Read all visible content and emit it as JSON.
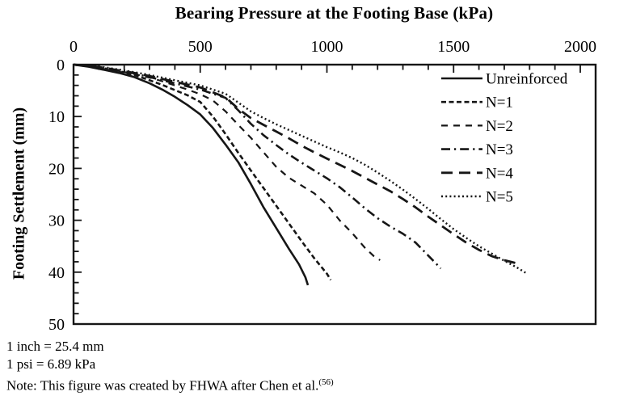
{
  "page": {
    "background": "#ffffff",
    "text_color": "#000000"
  },
  "chart_data": {
    "type": "line",
    "title": "Bearing Pressure at the Footing Base (kPa)",
    "xlabel": "Bearing Pressure at the Footing Base (kPa)",
    "ylabel": "Footing Settlement (mm)",
    "line_color": "#161616",
    "grid": false,
    "x_axis": {
      "min": 0,
      "max": 2000,
      "position": "top",
      "major_ticks": [
        0,
        500,
        1000,
        1500,
        2000
      ],
      "minor_step": 100
    },
    "y_axis": {
      "min": 0,
      "max": 50,
      "position": "left",
      "inverted": true,
      "major_ticks": [
        0,
        10,
        20,
        30,
        40,
        50
      ],
      "minor_step": 2
    },
    "legend": {
      "position": "top-right-inside"
    },
    "series": [
      {
        "name": "Unreinforced",
        "dash": "",
        "width": 2.6,
        "points": [
          [
            0,
            0
          ],
          [
            60,
            0.4
          ],
          [
            120,
            1.0
          ],
          [
            180,
            1.6
          ],
          [
            240,
            2.4
          ],
          [
            300,
            3.6
          ],
          [
            350,
            4.8
          ],
          [
            400,
            6.2
          ],
          [
            450,
            7.8
          ],
          [
            500,
            9.6
          ],
          [
            550,
            12.2
          ],
          [
            600,
            15.4
          ],
          [
            650,
            18.8
          ],
          [
            700,
            23.0
          ],
          [
            750,
            27.5
          ],
          [
            800,
            31.5
          ],
          [
            850,
            35.5
          ],
          [
            890,
            38.5
          ],
          [
            915,
            41.0
          ],
          [
            925,
            42.5
          ]
        ]
      },
      {
        "name": "N=1",
        "dash": "6 3.5",
        "width": 2.6,
        "points": [
          [
            0,
            0
          ],
          [
            60,
            0.35
          ],
          [
            120,
            0.85
          ],
          [
            180,
            1.4
          ],
          [
            240,
            2.0
          ],
          [
            300,
            3.0
          ],
          [
            350,
            3.9
          ],
          [
            400,
            4.9
          ],
          [
            450,
            5.9
          ],
          [
            500,
            7.2
          ],
          [
            550,
            10.0
          ],
          [
            600,
            13.4
          ],
          [
            650,
            17.0
          ],
          [
            700,
            20.4
          ],
          [
            750,
            23.8
          ],
          [
            800,
            27.2
          ],
          [
            850,
            30.6
          ],
          [
            900,
            34.0
          ],
          [
            950,
            37.3
          ],
          [
            1000,
            40.3
          ],
          [
            1015,
            41.5
          ]
        ]
      },
      {
        "name": "N=2",
        "dash": "8 7",
        "width": 2.2,
        "points": [
          [
            0,
            0
          ],
          [
            60,
            0.3
          ],
          [
            120,
            0.75
          ],
          [
            180,
            1.25
          ],
          [
            240,
            1.8
          ],
          [
            300,
            2.5
          ],
          [
            350,
            3.2
          ],
          [
            400,
            4.0
          ],
          [
            450,
            4.8
          ],
          [
            500,
            5.7
          ],
          [
            550,
            6.9
          ],
          [
            600,
            9.0
          ],
          [
            650,
            11.6
          ],
          [
            700,
            14.1
          ],
          [
            750,
            16.9
          ],
          [
            800,
            19.7
          ],
          [
            850,
            21.8
          ],
          [
            900,
            23.3
          ],
          [
            950,
            24.8
          ],
          [
            1000,
            27.0
          ],
          [
            1050,
            30.0
          ],
          [
            1100,
            32.5
          ],
          [
            1150,
            35.3
          ],
          [
            1185,
            36.9
          ],
          [
            1210,
            37.7
          ]
        ]
      },
      {
        "name": "N=3",
        "dash": "11 5 2.2 5",
        "width": 2.6,
        "points": [
          [
            0,
            0
          ],
          [
            60,
            0.25
          ],
          [
            120,
            0.7
          ],
          [
            180,
            1.2
          ],
          [
            240,
            1.7
          ],
          [
            300,
            2.4
          ],
          [
            400,
            3.6
          ],
          [
            500,
            4.8
          ],
          [
            600,
            6.4
          ],
          [
            650,
            8.8
          ],
          [
            700,
            11.4
          ],
          [
            750,
            13.6
          ],
          [
            800,
            15.5
          ],
          [
            850,
            17.3
          ],
          [
            900,
            18.9
          ],
          [
            950,
            20.4
          ],
          [
            1000,
            21.9
          ],
          [
            1050,
            23.6
          ],
          [
            1100,
            25.6
          ],
          [
            1150,
            27.7
          ],
          [
            1200,
            29.6
          ],
          [
            1250,
            31.2
          ],
          [
            1300,
            32.6
          ],
          [
            1350,
            34.3
          ],
          [
            1400,
            36.8
          ],
          [
            1430,
            38.3
          ],
          [
            1449,
            39.3
          ]
        ]
      },
      {
        "name": "N=4",
        "dash": "14 8",
        "width": 2.8,
        "points": [
          [
            0,
            0
          ],
          [
            60,
            0.2
          ],
          [
            120,
            0.6
          ],
          [
            180,
            1.1
          ],
          [
            240,
            1.6
          ],
          [
            300,
            2.2
          ],
          [
            400,
            3.3
          ],
          [
            500,
            4.4
          ],
          [
            600,
            6.3
          ],
          [
            650,
            8.5
          ],
          [
            700,
            10.3
          ],
          [
            750,
            11.6
          ],
          [
            800,
            12.9
          ],
          [
            850,
            14.2
          ],
          [
            900,
            15.6
          ],
          [
            950,
            16.9
          ],
          [
            1000,
            18.1
          ],
          [
            1050,
            19.3
          ],
          [
            1100,
            20.5
          ],
          [
            1150,
            21.8
          ],
          [
            1200,
            23.1
          ],
          [
            1250,
            24.4
          ],
          [
            1300,
            25.9
          ],
          [
            1350,
            27.5
          ],
          [
            1400,
            29.3
          ],
          [
            1450,
            31.0
          ],
          [
            1500,
            32.7
          ],
          [
            1550,
            34.3
          ],
          [
            1600,
            35.7
          ],
          [
            1650,
            36.9
          ],
          [
            1700,
            37.7
          ],
          [
            1750,
            38.3
          ]
        ]
      },
      {
        "name": "N=5",
        "dash": "2 3.2",
        "width": 2.4,
        "points": [
          [
            0,
            0
          ],
          [
            60,
            0.2
          ],
          [
            120,
            0.5
          ],
          [
            180,
            0.95
          ],
          [
            240,
            1.45
          ],
          [
            300,
            2.0
          ],
          [
            400,
            3.0
          ],
          [
            500,
            4.0
          ],
          [
            600,
            5.6
          ],
          [
            650,
            7.3
          ],
          [
            700,
            9.0
          ],
          [
            750,
            10.3
          ],
          [
            800,
            11.5
          ],
          [
            850,
            12.6
          ],
          [
            900,
            13.7
          ],
          [
            950,
            14.8
          ],
          [
            1000,
            15.9
          ],
          [
            1050,
            16.9
          ],
          [
            1100,
            18.0
          ],
          [
            1150,
            19.3
          ],
          [
            1200,
            20.8
          ],
          [
            1250,
            22.4
          ],
          [
            1300,
            24.1
          ],
          [
            1350,
            25.9
          ],
          [
            1400,
            27.8
          ],
          [
            1450,
            29.8
          ],
          [
            1500,
            31.7
          ],
          [
            1550,
            33.4
          ],
          [
            1600,
            35.0
          ],
          [
            1650,
            36.4
          ],
          [
            1700,
            37.8
          ],
          [
            1750,
            39.1
          ],
          [
            1790,
            40.3
          ]
        ]
      }
    ]
  },
  "notes": {
    "line1": "1 inch = 25.4 mm",
    "line2": "1 psi = 6.89 kPa",
    "line3_prefix": "Note: This figure was created by FHWA after Chen et al.",
    "line3_ref": "(56)"
  }
}
